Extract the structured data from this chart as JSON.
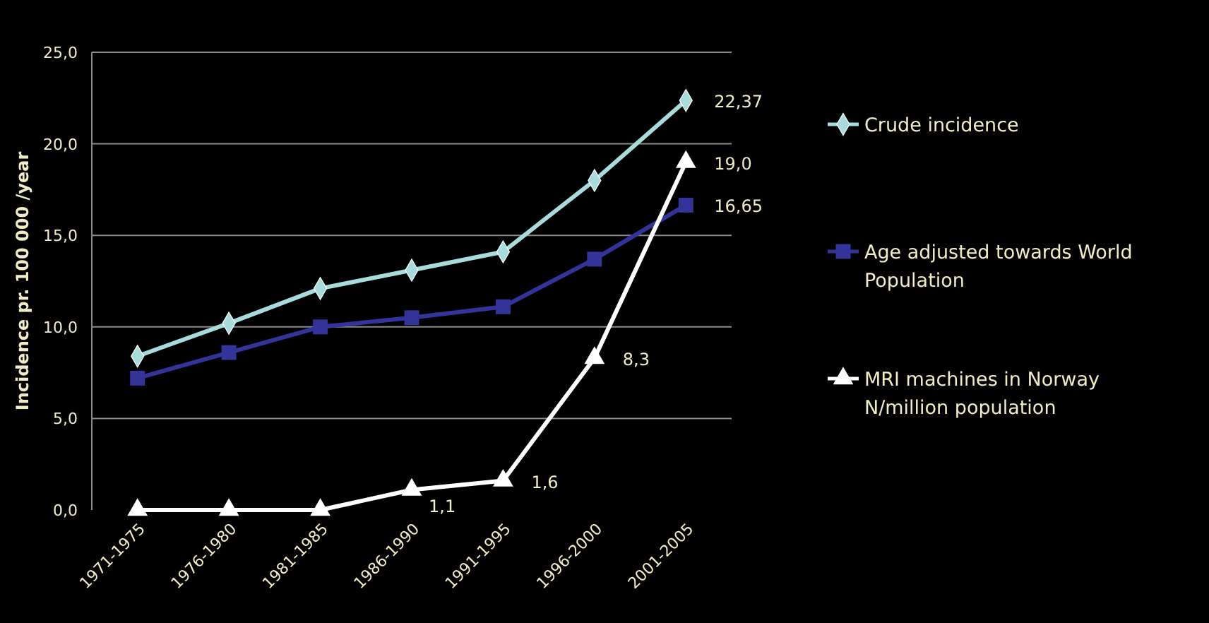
{
  "chart_data": {
    "type": "line",
    "ylabel": "Incidence pr. 100 000 /year",
    "categories": [
      "1971-1975",
      "1976-1980",
      "1981-1985",
      "1986-1990",
      "1991-1995",
      "1996-2000",
      "2001-2005"
    ],
    "series": [
      {
        "name": "Crude incidence",
        "color": "#a8dcdc",
        "marker": "diamond",
        "values": [
          8.4,
          10.2,
          12.1,
          13.1,
          14.1,
          18.0,
          22.37
        ],
        "value_labels": [
          null,
          null,
          null,
          null,
          null,
          null,
          "22,37"
        ]
      },
      {
        "name": "Age adjusted towards World Population",
        "color": "#33339a",
        "marker": "square",
        "values": [
          7.2,
          8.6,
          10.0,
          10.5,
          11.1,
          13.7,
          16.65
        ],
        "value_labels": [
          null,
          null,
          null,
          null,
          null,
          null,
          "16,65"
        ]
      },
      {
        "name": "MRI machines in Norway N/million population",
        "color": "#ffffff",
        "marker": "triangle",
        "values": [
          0,
          0,
          0,
          1.1,
          1.6,
          8.3,
          19.0
        ],
        "value_labels": [
          null,
          null,
          null,
          "1,1",
          "1,6",
          "8,3",
          "19,0"
        ]
      }
    ],
    "ylim": [
      0,
      25
    ],
    "yticks": [
      {
        "value": 0,
        "label": "0,0"
      },
      {
        "value": 5,
        "label": "5,0"
      },
      {
        "value": 10,
        "label": "10,0"
      },
      {
        "value": 15,
        "label": "15,0"
      },
      {
        "value": 20,
        "label": "20,0"
      },
      {
        "value": 25,
        "label": "25,0"
      }
    ],
    "grid": "y",
    "legend": "right",
    "line_style": "solid"
  }
}
